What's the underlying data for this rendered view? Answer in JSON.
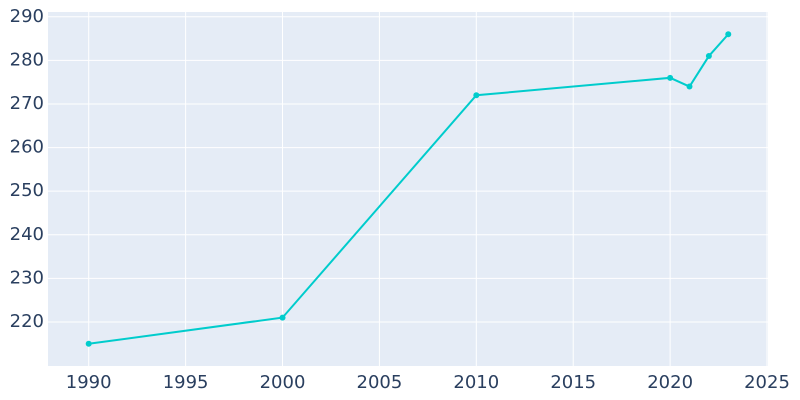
{
  "chart_data": {
    "type": "line",
    "x": [
      1990,
      2000,
      2010,
      2020,
      2021,
      2022,
      2023
    ],
    "series": [
      {
        "color": "#00cccc",
        "values": [
          215,
          221,
          272,
          276,
          274,
          281,
          286
        ]
      }
    ],
    "xlim": [
      1987.9,
      2025.05
    ],
    "xticks": [
      1990,
      1995,
      2000,
      2005,
      2010,
      2015,
      2020,
      2025
    ],
    "ylim": [
      209.9,
      291.1
    ],
    "yticks": [
      220,
      230,
      240,
      250,
      260,
      270,
      280,
      290
    ],
    "grid": true
  }
}
